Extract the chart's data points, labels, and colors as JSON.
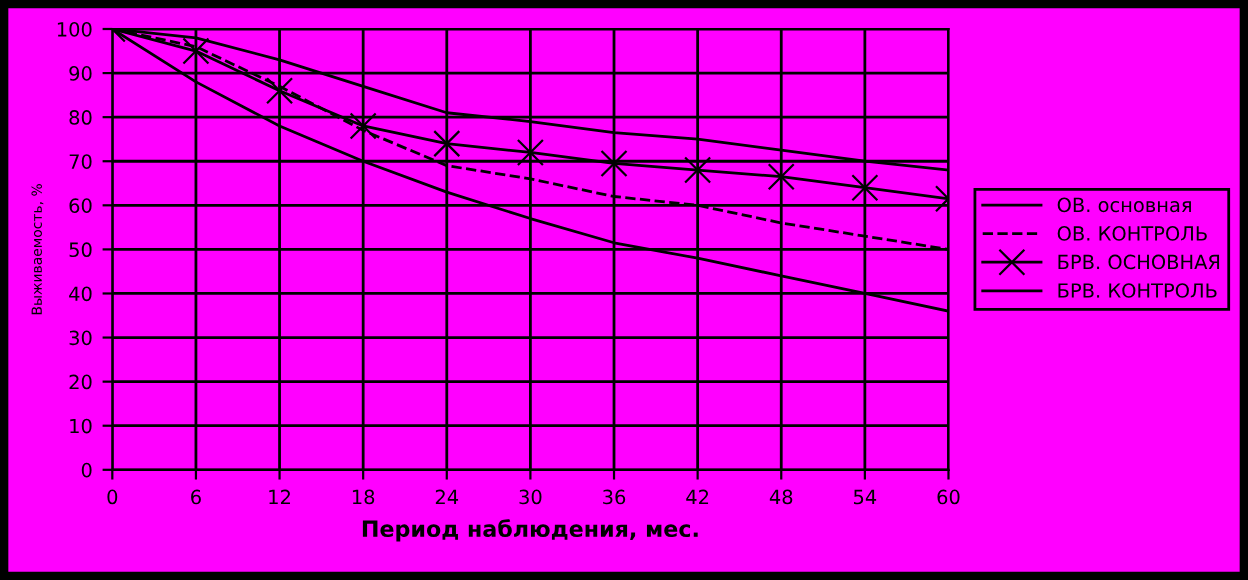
{
  "chart_data": {
    "type": "line",
    "xlabel": "Период наблюдения, мес.",
    "ylabel": "Выживаемость, %",
    "x": [
      0,
      6,
      12,
      18,
      24,
      30,
      36,
      42,
      48,
      54,
      60
    ],
    "series": [
      {
        "name": "ОВ. основная",
        "color": "#000000",
        "values": [
          100,
          88,
          78,
          70,
          63,
          57,
          51.5,
          48,
          44,
          40,
          36
        ],
        "marker": "none",
        "line_style": "solid"
      },
      {
        "name": "ОВ. КОНТРОЛЬ",
        "color": "#000000",
        "values": [
          100,
          96,
          87,
          77,
          69,
          66,
          62,
          60,
          56,
          53,
          50
        ],
        "marker": "none",
        "line_style": "dashed"
      },
      {
        "name": "БРВ. ОСНОВНАЯ",
        "color": "#000000",
        "values": [
          100,
          95,
          86,
          78,
          74,
          72,
          69.5,
          68,
          66.5,
          64,
          61.5
        ],
        "marker": "cross",
        "line_style": "solid"
      },
      {
        "name": "БРВ. КОНТРОЛЬ",
        "color": "#000000",
        "values": [
          100,
          98,
          93,
          87,
          81,
          79,
          76.5,
          75,
          72.5,
          70,
          68
        ],
        "marker": "none",
        "line_style": "solid"
      }
    ],
    "xlim": [
      0,
      60
    ],
    "xticks": [
      0,
      6,
      12,
      18,
      24,
      30,
      36,
      42,
      48,
      54,
      60
    ],
    "ylim": [
      0,
      100
    ],
    "yticks": [
      0,
      10,
      20,
      30,
      40,
      50,
      60,
      70,
      80,
      90,
      100
    ],
    "grid": true,
    "legend": "right"
  }
}
